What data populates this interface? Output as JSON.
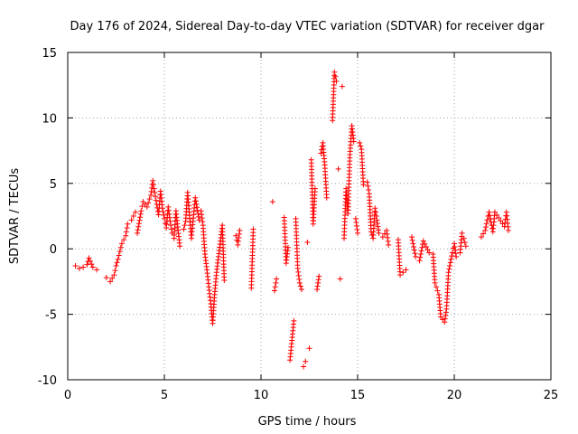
{
  "chart_data": {
    "type": "scatter",
    "title": "Day 176 of 2024, Sidereal Day-to-day VTEC variation (SDTVAR) for receiver dgar",
    "xlabel": "GPS time / hours",
    "ylabel": "SDTVAR / TECUs",
    "xlim": [
      0,
      25
    ],
    "ylim": [
      -10,
      15
    ],
    "xticks": [
      0,
      5,
      10,
      15,
      20,
      25
    ],
    "yticks": [
      -10,
      -5,
      0,
      5,
      10,
      15
    ],
    "xtick_labels": [
      "0",
      "5",
      "10",
      "15",
      "20",
      "25"
    ],
    "ytick_labels": [
      "-10",
      "-5",
      "0",
      "5",
      "10",
      "15"
    ],
    "grid": true,
    "marker": "+",
    "color": "#ff0000",
    "segments": [
      [
        [
          0.4,
          -1.3
        ],
        [
          0.6,
          -1.5
        ],
        [
          0.8,
          -1.4
        ],
        [
          1.0,
          -1.2
        ],
        [
          1.1,
          -0.7
        ],
        [
          1.3,
          -1.4
        ],
        [
          1.5,
          -1.6
        ]
      ],
      [
        [
          2.0,
          -2.2
        ],
        [
          2.2,
          -2.5
        ],
        [
          2.4,
          -2.0
        ],
        [
          2.5,
          -1.3
        ],
        [
          2.6,
          -0.8
        ],
        [
          2.7,
          -0.2
        ],
        [
          2.8,
          0.4
        ],
        [
          3.0,
          1.0
        ],
        [
          3.1,
          1.9
        ],
        [
          3.3,
          2.2
        ],
        [
          3.5,
          2.8
        ]
      ],
      [
        [
          3.6,
          1.2
        ],
        [
          3.8,
          2.9
        ],
        [
          3.9,
          3.6
        ],
        [
          4.1,
          3.2
        ],
        [
          4.3,
          4.1
        ],
        [
          4.4,
          5.2
        ],
        [
          4.5,
          4.3
        ],
        [
          4.6,
          3.4
        ],
        [
          4.7,
          2.6
        ],
        [
          4.8,
          4.4
        ],
        [
          4.9,
          3.1
        ],
        [
          5.0,
          2.3
        ],
        [
          5.1,
          1.6
        ],
        [
          5.2,
          3.2
        ],
        [
          5.3,
          2.1
        ],
        [
          5.4,
          1.2
        ],
        [
          5.5,
          0.8
        ],
        [
          5.6,
          2.9
        ],
        [
          5.8,
          0.2
        ]
      ],
      [
        [
          6.0,
          1.5
        ],
        [
          6.1,
          2.1
        ],
        [
          6.2,
          4.3
        ],
        [
          6.4,
          0.8
        ],
        [
          6.6,
          3.9
        ],
        [
          6.8,
          2.2
        ]
      ],
      [
        [
          6.9,
          2.9
        ],
        [
          7.0,
          1.8
        ],
        [
          7.1,
          -0.4
        ],
        [
          7.2,
          -1.6
        ],
        [
          7.3,
          -2.9
        ],
        [
          7.4,
          -4.2
        ],
        [
          7.5,
          -5.7
        ],
        [
          7.6,
          -3.5
        ],
        [
          7.7,
          -1.8
        ],
        [
          7.8,
          -0.6
        ],
        [
          7.9,
          0.6
        ],
        [
          8.0,
          1.8
        ],
        [
          8.1,
          -2.4
        ]
      ],
      [
        [
          8.7,
          1.0
        ],
        [
          8.8,
          0.3
        ],
        [
          8.9,
          1.4
        ]
      ],
      [
        [
          9.5,
          -3.0
        ],
        [
          9.6,
          1.5
        ]
      ],
      [
        [
          10.6,
          3.6
        ],
        [
          10.7,
          -3.2
        ],
        [
          10.8,
          -2.3
        ]
      ],
      [
        [
          11.2,
          2.4
        ],
        [
          11.3,
          -1.1
        ],
        [
          11.4,
          0.1
        ],
        [
          11.5,
          -8.5
        ],
        [
          11.7,
          -5.5
        ],
        [
          11.8,
          2.3
        ],
        [
          11.9,
          -1.5
        ],
        [
          12.0,
          -2.6
        ],
        [
          12.1,
          -3.1
        ],
        [
          12.2,
          -9.0
        ],
        [
          12.3,
          -8.6
        ],
        [
          12.4,
          0.5
        ],
        [
          12.5,
          -7.6
        ],
        [
          12.6,
          6.8
        ],
        [
          12.7,
          1.9
        ],
        [
          12.8,
          4.6
        ],
        [
          12.9,
          -3.1
        ],
        [
          13.0,
          -2.1
        ],
        [
          13.1,
          7.3
        ],
        [
          13.2,
          8.1
        ],
        [
          13.3,
          6.4
        ],
        [
          13.4,
          3.9
        ]
      ],
      [
        [
          13.7,
          9.8
        ],
        [
          13.8,
          13.5
        ],
        [
          13.9,
          12.8
        ],
        [
          14.0,
          6.1
        ],
        [
          14.1,
          -2.3
        ],
        [
          14.2,
          12.4
        ],
        [
          14.3,
          0.8
        ],
        [
          14.4,
          4.6
        ],
        [
          14.5,
          2.7
        ],
        [
          14.6,
          7.2
        ],
        [
          14.7,
          9.4
        ],
        [
          14.8,
          8.2
        ],
        [
          14.9,
          2.3
        ],
        [
          15.0,
          1.2
        ],
        [
          15.1,
          8.1
        ],
        [
          15.2,
          7.6
        ],
        [
          15.3,
          4.9
        ],
        [
          15.5,
          5.1
        ],
        [
          15.6,
          4.2
        ],
        [
          15.7,
          1.3
        ],
        [
          15.8,
          0.8
        ],
        [
          15.9,
          3.1
        ],
        [
          16.0,
          2.2
        ],
        [
          16.1,
          1.2
        ],
        [
          16.3,
          0.9
        ],
        [
          16.5,
          1.4
        ],
        [
          16.6,
          0.3
        ]
      ],
      [
        [
          17.1,
          0.7
        ],
        [
          17.2,
          -2.0
        ],
        [
          17.5,
          -1.6
        ]
      ],
      [
        [
          17.8,
          0.9
        ],
        [
          18.0,
          -0.6
        ],
        [
          18.2,
          -0.9
        ],
        [
          18.4,
          0.6
        ],
        [
          18.7,
          -0.3
        ],
        [
          18.9,
          -0.4
        ],
        [
          19.0,
          -2.6
        ],
        [
          19.2,
          -3.5
        ],
        [
          19.3,
          -5.2
        ],
        [
          19.5,
          -5.6
        ],
        [
          19.6,
          -4.6
        ],
        [
          19.7,
          -1.8
        ],
        [
          19.9,
          -0.3
        ],
        [
          20.0,
          0.4
        ],
        [
          20.1,
          -0.6
        ],
        [
          20.3,
          -0.3
        ],
        [
          20.4,
          1.2
        ],
        [
          20.5,
          0.8
        ],
        [
          20.6,
          0.2
        ]
      ],
      [
        [
          21.4,
          0.9
        ],
        [
          21.6,
          1.4
        ],
        [
          21.7,
          2.2
        ],
        [
          21.8,
          2.8
        ],
        [
          22.0,
          1.3
        ],
        [
          22.1,
          2.8
        ],
        [
          22.6,
          1.7
        ],
        [
          22.7,
          2.8
        ],
        [
          22.8,
          1.4
        ]
      ]
    ]
  }
}
